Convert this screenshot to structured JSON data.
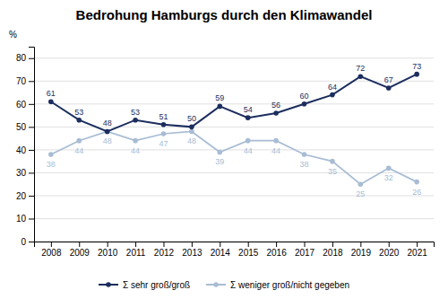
{
  "chart_data": {
    "type": "line",
    "title": "Bedrohung Hamburgs durch den Klimawandel",
    "ylabel": "%",
    "x": [
      2008,
      2009,
      2010,
      2011,
      2012,
      2013,
      2014,
      2015,
      2016,
      2017,
      2018,
      2019,
      2020,
      2021
    ],
    "series": [
      {
        "name": "Σ sehr groß/groß",
        "color": "#1c2e5e",
        "marker": "circle",
        "values": [
          61,
          53,
          48,
          53,
          51,
          50,
          59,
          54,
          56,
          60,
          64,
          72,
          67,
          73
        ]
      },
      {
        "name": "Σ weniger groß/nicht gegeben",
        "color": "#a8bcd4",
        "marker": "circle",
        "values": [
          38,
          44,
          48,
          44,
          47,
          48,
          39,
          44,
          44,
          38,
          35,
          25,
          32,
          26
        ]
      }
    ],
    "xlim": [
      2007.4,
      2021.6
    ],
    "xticks": [
      2008,
      2009,
      2010,
      2011,
      2012,
      2013,
      2014,
      2015,
      2016,
      2017,
      2018,
      2019,
      2020,
      2021
    ],
    "ylim": [
      0,
      85
    ],
    "yticks": [
      0,
      10,
      20,
      30,
      40,
      50,
      60,
      70,
      80
    ],
    "grid": true,
    "legend": "bottom",
    "data_labels": true
  }
}
